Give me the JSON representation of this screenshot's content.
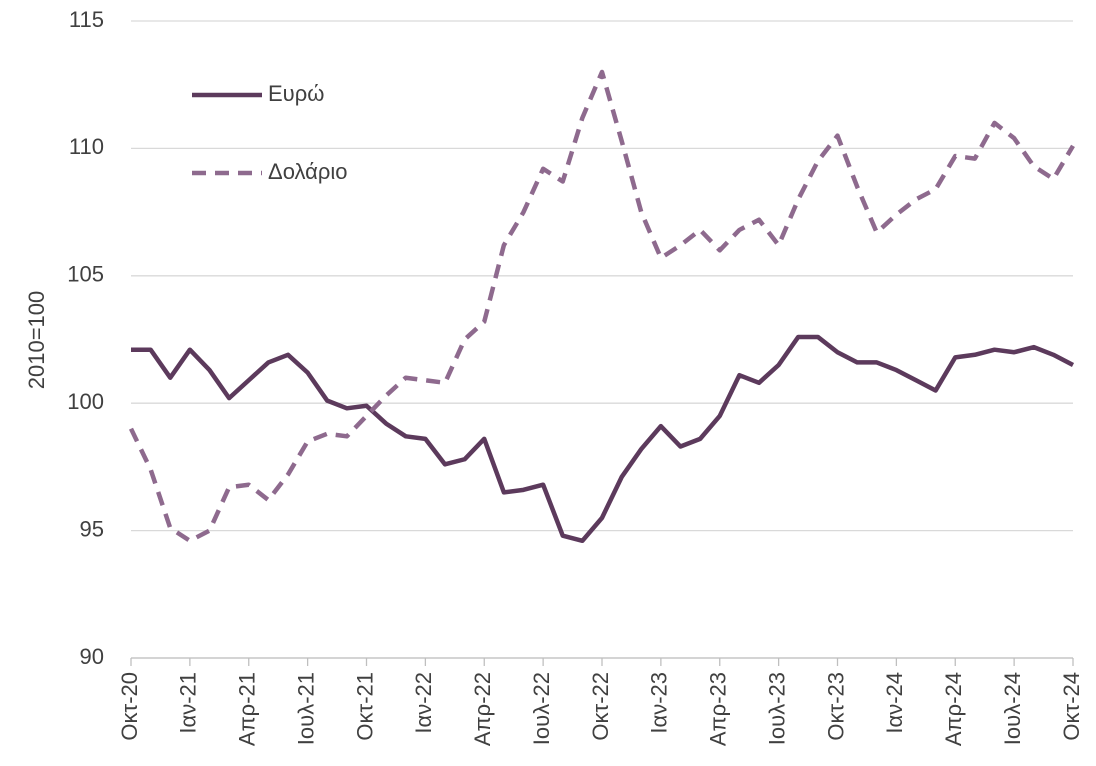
{
  "chart_data": {
    "type": "line",
    "y_label": "2010=100",
    "categories": [
      "Οκτ-20",
      null,
      null,
      "Ιαν-21",
      null,
      null,
      "Απρ-21",
      null,
      null,
      "Ιουλ-21",
      null,
      null,
      "Οκτ-21",
      null,
      null,
      "Ιαν-22",
      null,
      null,
      "Απρ-22",
      null,
      null,
      "Ιουλ-22",
      null,
      null,
      "Οκτ-22",
      null,
      null,
      "Ιαν-23",
      null,
      null,
      "Απρ-23",
      null,
      null,
      "Ιουλ-23",
      null,
      null,
      "Οκτ-23",
      null,
      null,
      "Ιαν-24",
      null,
      null,
      "Απρ-24",
      null,
      null,
      "Ιουλ-24",
      null,
      null,
      "Οκτ-24"
    ],
    "series": [
      {
        "name": "Ευρώ",
        "color": "#5c3a5c",
        "dash": false,
        "values": [
          102.1,
          102.1,
          101.0,
          102.1,
          101.3,
          100.2,
          100.9,
          101.6,
          101.9,
          101.2,
          100.1,
          99.8,
          99.9,
          99.2,
          98.7,
          98.6,
          97.6,
          97.8,
          98.6,
          96.5,
          96.6,
          96.8,
          94.8,
          94.6,
          95.5,
          97.1,
          98.2,
          99.1,
          98.3,
          98.6,
          99.5,
          101.1,
          100.8,
          101.5,
          102.6,
          102.6,
          102.0,
          101.6,
          101.6,
          101.3,
          100.9,
          100.5,
          101.8,
          101.9,
          102.1,
          102.0,
          102.2,
          101.9,
          101.5
        ]
      },
      {
        "name": "Δολάριο",
        "color": "#8e6a8e",
        "dash": true,
        "values": [
          99.0,
          97.4,
          95.1,
          94.6,
          95.0,
          96.7,
          96.8,
          96.2,
          97.2,
          98.5,
          98.8,
          98.7,
          99.5,
          100.3,
          101.0,
          100.9,
          100.8,
          102.5,
          103.2,
          106.2,
          107.5,
          109.2,
          108.7,
          111.2,
          113.0,
          110.3,
          107.5,
          105.7,
          106.2,
          106.8,
          106.0,
          106.8,
          107.2,
          106.2,
          108.0,
          109.5,
          110.5,
          108.5,
          106.7,
          107.4,
          108.0,
          108.4,
          109.7,
          109.6,
          111.0,
          110.4,
          109.3,
          108.8,
          110.1
        ]
      }
    ],
    "ylim": [
      90,
      115
    ],
    "yticks": [
      90,
      95,
      100,
      105,
      110,
      115
    ],
    "grid": true,
    "legend": "upper left"
  }
}
